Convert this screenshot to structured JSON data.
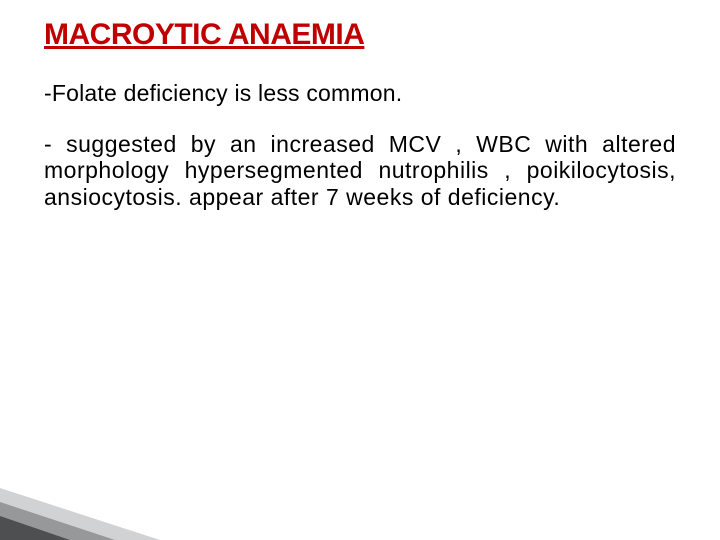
{
  "title": {
    "text": "MACROYTIC ANAEMIA",
    "color": "#c00000",
    "fontsize": 30
  },
  "line1": {
    "text": "-Folate deficiency is less common.",
    "color": "#000000",
    "fontsize": 23
  },
  "para": {
    "text": "- suggested by an increased MCV , WBC with altered morphology hypersegmented nutrophilis , poikilocytosis, ansiocytosis. appear after 7 weeks of deficiency.",
    "color": "#000000",
    "fontsize": 23
  },
  "decor": {
    "tri1_color": "#d0d2d3",
    "tri2_color": "#96989a",
    "tri3_color": "#4d4f50"
  }
}
